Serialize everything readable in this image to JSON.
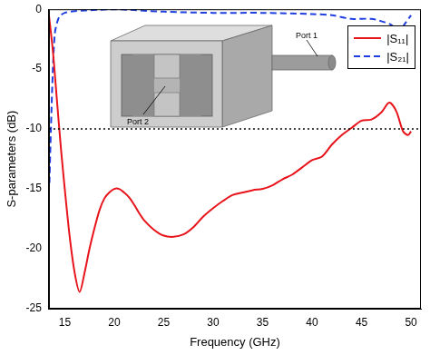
{
  "chart_data": {
    "type": "line",
    "x_label": "Frequency (GHz)",
    "y_label": "S-parameters (dB)",
    "xlim": [
      13.4,
      51
    ],
    "xticks": [
      15,
      20,
      25,
      30,
      35,
      40,
      45,
      50
    ],
    "ylim": [
      -25,
      0
    ],
    "yticks": [
      -25,
      -20,
      -15,
      -10,
      -5,
      0
    ],
    "grid": false,
    "legend": "upper right",
    "series": [
      {
        "name": "|S₁₁|",
        "color": "#e8141c",
        "line_style": "solid",
        "x": [
          13.4,
          13.8,
          14.2,
          14.6,
          15.0,
          15.5,
          16.0,
          16.5,
          17.0,
          17.5,
          18.0,
          18.5,
          19.0,
          19.5,
          20.0,
          20.5,
          21.0,
          21.5,
          22.0,
          22.5,
          23.0,
          24.0,
          25.0,
          26.0,
          27.0,
          28.0,
          29.0,
          30.0,
          31.0,
          32.0,
          33.0,
          34.0,
          35.0,
          36.0,
          37.0,
          38.0,
          39.0,
          40.0,
          41.0,
          42.0,
          43.0,
          44.0,
          45.0,
          46.0,
          47.0,
          47.8,
          48.5,
          49.2,
          49.7,
          50.0
        ],
        "values": [
          -0.5,
          -3.5,
          -7.5,
          -11.5,
          -15.0,
          -19.0,
          -22.0,
          -23.6,
          -22.0,
          -20.0,
          -18.3,
          -16.8,
          -15.8,
          -15.3,
          -15.0,
          -15.0,
          -15.3,
          -15.7,
          -16.3,
          -17.0,
          -17.6,
          -18.4,
          -18.9,
          -19.0,
          -18.8,
          -18.2,
          -17.3,
          -16.6,
          -16.0,
          -15.5,
          -15.3,
          -15.1,
          -15.0,
          -14.7,
          -14.2,
          -13.8,
          -13.2,
          -12.6,
          -12.3,
          -11.3,
          -10.5,
          -9.9,
          -9.3,
          -9.2,
          -8.6,
          -7.8,
          -8.5,
          -10.2,
          -10.5,
          -10.2
        ]
      },
      {
        "name": "|S₂₁|",
        "color": "#1f3fe0",
        "line_style": "dashed",
        "x": [
          13.45,
          13.6,
          13.8,
          14.0,
          14.3,
          14.6,
          15.0,
          16.0,
          17.0,
          20.0,
          25.0,
          30.0,
          35.0,
          40.0,
          42.0,
          44.0,
          46.0,
          47.0,
          48.0,
          48.8,
          49.3,
          50.0
        ],
        "values": [
          -14.5,
          -10.0,
          -5.0,
          -2.0,
          -0.9,
          -0.5,
          -0.3,
          -0.15,
          -0.1,
          0.0,
          -0.2,
          -0.3,
          -0.3,
          -0.4,
          -0.5,
          -0.8,
          -0.8,
          -1.0,
          -1.3,
          -1.9,
          -1.3,
          -0.5
        ]
      }
    ],
    "reference_line": {
      "value": -10,
      "color": "#000000",
      "line_style": "dotted"
    },
    "annotations": [
      "Port 1",
      "Port 2"
    ]
  }
}
